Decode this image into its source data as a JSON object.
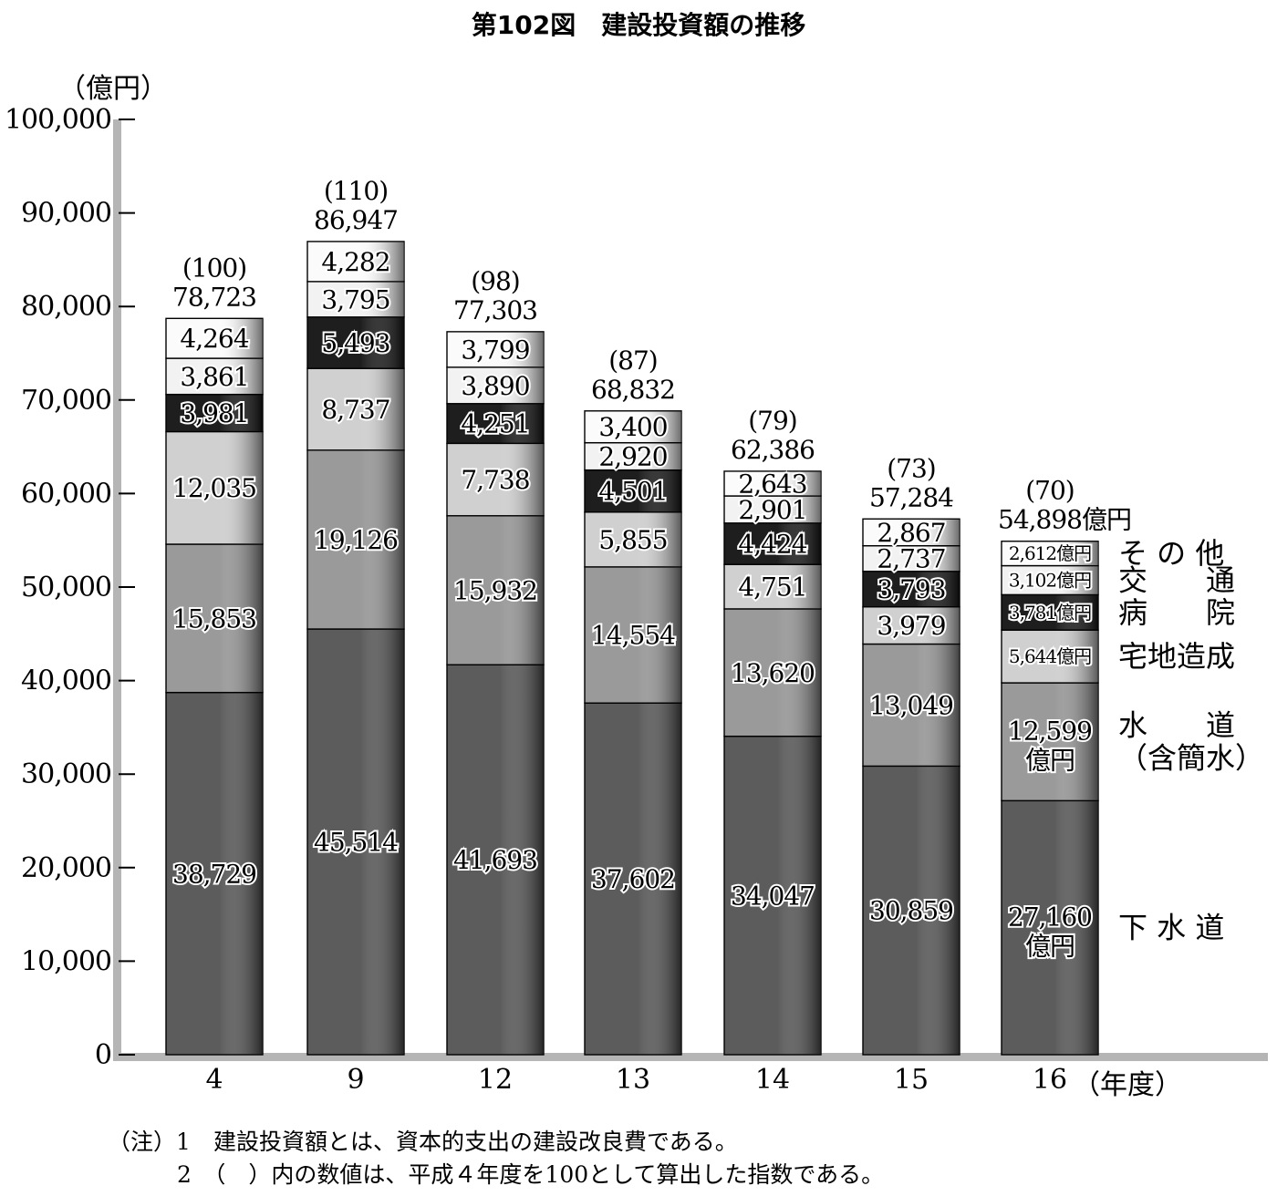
{
  "title": "第102図　建設投資額の推移",
  "unit_label": "（億円）",
  "x_unit_label": "（年度）",
  "chart_data": {
    "type": "bar",
    "stacked": true,
    "categories": [
      "4",
      "9",
      "12",
      "13",
      "14",
      "15",
      "16"
    ],
    "ylim": [
      0,
      100000
    ],
    "yticks": [
      0,
      10000,
      20000,
      30000,
      40000,
      50000,
      60000,
      70000,
      80000,
      90000,
      100000
    ],
    "ytick_labels": [
      "0",
      "10,000",
      "20,000",
      "30,000",
      "40,000",
      "50,000",
      "60,000",
      "70,000",
      "80,000",
      "90,000",
      "100,000"
    ],
    "totals": [
      78723,
      86947,
      77303,
      68832,
      62386,
      57284,
      54898
    ],
    "total_labels": [
      "78,723",
      "86,947",
      "77,303",
      "68,832",
      "62,386",
      "57,284",
      "54,898億円"
    ],
    "index_labels": [
      "(100)",
      "(110)",
      "(98)",
      "(87)",
      "(79)",
      "(73)",
      "(70)"
    ],
    "series": [
      {
        "name": "下水道",
        "legend": [
          "下 水 道"
        ],
        "color": "#5c5c5c",
        "values": [
          38729,
          45514,
          41693,
          37602,
          34047,
          30859,
          27160
        ],
        "labels": [
          "38,729",
          "45,514",
          "41,693",
          "37,602",
          "34,047",
          "30,859",
          "27,160|億円"
        ]
      },
      {
        "name": "水道（含簡水）",
        "legend": [
          "水　　道",
          "（含簡水）"
        ],
        "color": "#9a9a9a",
        "values": [
          15853,
          19126,
          15932,
          14554,
          13620,
          13049,
          12599
        ],
        "labels": [
          "15,853",
          "19,126",
          "15,932",
          "14,554",
          "13,620",
          "13,049",
          "12,599|億円"
        ]
      },
      {
        "name": "宅地造成",
        "legend": [
          "宅地造成"
        ],
        "color": "#d0d0d0",
        "values": [
          12035,
          8737,
          7738,
          5855,
          4751,
          3979,
          5644
        ],
        "labels": [
          "12,035",
          "8,737",
          "7,738",
          "5,855",
          "4,751",
          "3,979",
          "5,644億円"
        ]
      },
      {
        "name": "病院",
        "legend": [
          "病　　院"
        ],
        "color": "#1e1e1e",
        "values": [
          3981,
          5493,
          4251,
          4501,
          4424,
          3793,
          3781
        ],
        "labels": [
          "3,981",
          "5,493",
          "4,251",
          "4,501",
          "4,424",
          "3,793",
          "3,781億円"
        ]
      },
      {
        "name": "交通",
        "legend": [
          "交　　通"
        ],
        "color": "#f2f2f2",
        "values": [
          3861,
          3795,
          3890,
          2920,
          2901,
          2737,
          3102
        ],
        "labels": [
          "3,861",
          "3,795",
          "3,890",
          "2,920",
          "2,901",
          "2,737",
          "3,102億円"
        ]
      },
      {
        "name": "その他",
        "legend": [
          "そ の 他"
        ],
        "color": "#fbfbfb",
        "values": [
          4264,
          4282,
          3799,
          3400,
          2643,
          2867,
          2612
        ],
        "labels": [
          "4,264",
          "4,282",
          "3,799",
          "3,400",
          "2,643",
          "2,867",
          "2,612億円"
        ]
      }
    ]
  },
  "notes": [
    {
      "prefix": "（注）",
      "num": "1",
      "text": "建設投資額とは、資本的支出の建設改良費である。"
    },
    {
      "prefix": "",
      "num": "2",
      "text": "（　）内の数値は、平成４年度を100として算出した指数である。"
    }
  ]
}
